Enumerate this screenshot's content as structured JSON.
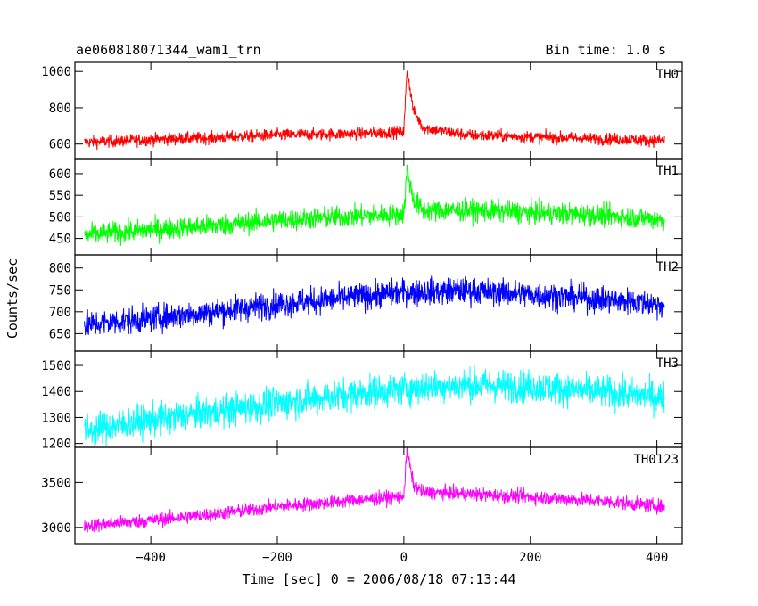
{
  "header": {
    "title": "ae060818071344_wam1_trn",
    "bin_time": "Bin time: 1.0 s"
  },
  "axes": {
    "xlabel": "Time [sec] 0 = 2006/08/18 07:13:44",
    "ylabel": "Counts/sec"
  },
  "chart_data": {
    "type": "line",
    "title": "ae060818071344_wam1_trn",
    "xlabel": "Time [sec] 0 = 2006/08/18 07:13:44",
    "ylabel": "Counts/sec",
    "xlim": [
      -520,
      440
    ],
    "x_ticks": [
      -400,
      -200,
      0,
      200,
      400
    ],
    "x_tick_labels": [
      "−400",
      "−200",
      "0",
      "200",
      "400"
    ],
    "x_range_data": [
      -505,
      412
    ],
    "grid": false,
    "panels": [
      {
        "name": "TH0",
        "color": "#ff0000",
        "ylim": [
          520,
          1050
        ],
        "yticks": [
          600,
          800,
          1000
        ],
        "x": [
          -500,
          -400,
          -300,
          -200,
          -100,
          -10,
          0,
          5,
          15,
          30,
          100,
          200,
          300,
          400,
          410
        ],
        "y": [
          610,
          625,
          635,
          650,
          655,
          665,
          670,
          1010,
          790,
          690,
          650,
          640,
          630,
          620,
          620
        ],
        "spread": 24
      },
      {
        "name": "TH1",
        "color": "#00ff00",
        "ylim": [
          412,
          635
        ],
        "yticks": [
          450,
          500,
          550,
          600
        ],
        "x": [
          -500,
          -400,
          -300,
          -200,
          -100,
          -10,
          0,
          5,
          15,
          30,
          100,
          200,
          300,
          400,
          410
        ],
        "y": [
          458,
          470,
          480,
          492,
          500,
          505,
          508,
          610,
          540,
          515,
          515,
          510,
          505,
          495,
          492
        ],
        "spread": 18
      },
      {
        "name": "TH2",
        "color": "#0000ff",
        "ylim": [
          610,
          830
        ],
        "yticks": [
          650,
          700,
          750,
          800
        ],
        "x": [
          -500,
          -400,
          -300,
          -200,
          -100,
          0,
          100,
          200,
          300,
          400,
          410
        ],
        "y": [
          670,
          685,
          700,
          718,
          730,
          745,
          748,
          740,
          730,
          718,
          715
        ],
        "spread": 22
      },
      {
        "name": "TH3",
        "color": "#00ffff",
        "ylim": [
          1185,
          1555
        ],
        "yticks": [
          1200,
          1300,
          1400,
          1500
        ],
        "x": [
          -500,
          -400,
          -300,
          -200,
          -100,
          0,
          100,
          200,
          300,
          400,
          410
        ],
        "y": [
          1250,
          1290,
          1320,
          1355,
          1385,
          1410,
          1425,
          1420,
          1400,
          1380,
          1375
        ],
        "spread": 45
      },
      {
        "name": "TH0123",
        "color": "#ff00ff",
        "ylim": [
          2820,
          3890
        ],
        "yticks": [
          3000,
          3500
        ],
        "x": [
          -500,
          -400,
          -300,
          -200,
          -100,
          -10,
          0,
          5,
          15,
          30,
          100,
          200,
          300,
          400,
          410
        ],
        "y": [
          3020,
          3080,
          3150,
          3230,
          3290,
          3340,
          3360,
          3860,
          3480,
          3390,
          3370,
          3340,
          3300,
          3240,
          3230
        ],
        "spread": 55
      }
    ]
  }
}
